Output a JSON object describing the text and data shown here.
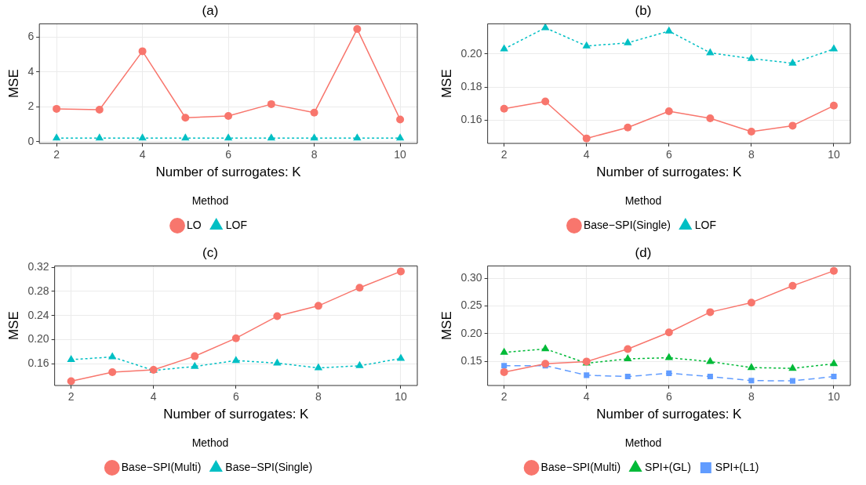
{
  "chart_data": [
    {
      "type": "line",
      "title": "(a)",
      "xlabel": "Number of surrogates: K",
      "ylabel": "MSE",
      "legend_title": "Method",
      "legend": "bottom",
      "grid": true,
      "x": [
        2,
        3,
        4,
        5,
        6,
        7,
        8,
        9,
        10
      ],
      "xlim": [
        1.6,
        10.4
      ],
      "xticks": [
        2,
        4,
        6,
        8,
        10
      ],
      "ylim": [
        -0.1,
        6.75
      ],
      "yticks": [
        0,
        2,
        4,
        6
      ],
      "series": [
        {
          "name": "LO",
          "color": "#f8766d",
          "marker": "circle",
          "line_style": "solid",
          "values": [
            1.88,
            1.83,
            5.18,
            1.37,
            1.47,
            2.15,
            1.66,
            6.45,
            1.27
          ]
        },
        {
          "name": "LOF",
          "color": "#00bfc4",
          "marker": "triangle",
          "line_style": "dotted",
          "values": [
            0.2,
            0.2,
            0.2,
            0.2,
            0.2,
            0.2,
            0.2,
            0.2,
            0.2
          ]
        }
      ]
    },
    {
      "type": "line",
      "title": "(b)",
      "xlabel": "Number of surrogates: K",
      "ylabel": "MSE",
      "legend_title": "Method",
      "legend": "bottom",
      "grid": true,
      "x": [
        2,
        3,
        4,
        5,
        6,
        7,
        8,
        9,
        10
      ],
      "xlim": [
        1.6,
        10.4
      ],
      "xticks": [
        2,
        4,
        6,
        8,
        10
      ],
      "ylim": [
        0.146,
        0.2182
      ],
      "yticks": [
        {
          "value": 0.16,
          "label": "0.16"
        },
        {
          "value": 0.18,
          "label": "0.18"
        },
        {
          "value": 0.2,
          "label": "0.20"
        }
      ],
      "series": [
        {
          "name": "Base−SPI(Single)",
          "color": "#f8766d",
          "marker": "circle",
          "line_style": "solid",
          "values": [
            0.1669,
            0.1713,
            0.149,
            0.1556,
            0.1654,
            0.1611,
            0.1531,
            0.1567,
            0.1688
          ]
        },
        {
          "name": "LOF",
          "color": "#00bfc4",
          "marker": "triangle",
          "line_style": "dotted",
          "values": [
            0.203,
            0.2158,
            0.2048,
            0.2067,
            0.2138,
            0.2007,
            0.1972,
            0.1944,
            0.203
          ]
        }
      ]
    },
    {
      "type": "line",
      "title": "(c)",
      "xlabel": "Number of surrogates: K",
      "ylabel": "MSE",
      "legend_title": "Method",
      "legend": "bottom",
      "grid": true,
      "x": [
        2,
        3,
        4,
        5,
        6,
        7,
        8,
        9,
        10
      ],
      "xlim": [
        1.6,
        10.4
      ],
      "xticks": [
        2,
        4,
        6,
        8,
        10
      ],
      "ylim": [
        0.124,
        0.3223
      ],
      "yticks": [
        {
          "value": 0.16,
          "label": "0.16"
        },
        {
          "value": 0.2,
          "label": "0.20"
        },
        {
          "value": 0.24,
          "label": "0.24"
        },
        {
          "value": 0.28,
          "label": "0.28"
        },
        {
          "value": 0.32,
          "label": "0.32"
        }
      ],
      "series": [
        {
          "name": "Base−SPI(Multi)",
          "color": "#f8766d",
          "marker": "circle",
          "line_style": "solid",
          "values": [
            0.1311,
            0.146,
            0.1501,
            0.1726,
            0.2024,
            0.2389,
            0.2561,
            0.2862,
            0.3132
          ]
        },
        {
          "name": "Base−SPI(Single)",
          "color": "#00bfc4",
          "marker": "triangle",
          "line_style": "dotted",
          "values": [
            0.1669,
            0.1713,
            0.149,
            0.1556,
            0.1654,
            0.1611,
            0.1531,
            0.1567,
            0.1688
          ]
        }
      ]
    },
    {
      "type": "line",
      "title": "(d)",
      "xlabel": "Number of surrogates: K",
      "ylabel": "MSE",
      "legend_title": "Method",
      "legend": "bottom",
      "grid": true,
      "x": [
        2,
        3,
        4,
        5,
        6,
        7,
        8,
        9,
        10
      ],
      "xlim": [
        1.6,
        10.4
      ],
      "xticks": [
        2,
        4,
        6,
        8,
        10
      ],
      "ylim": [
        0.107,
        0.322
      ],
      "yticks": [
        {
          "value": 0.15,
          "label": "0.15"
        },
        {
          "value": 0.2,
          "label": "0.20"
        },
        {
          "value": 0.25,
          "label": "0.25"
        },
        {
          "value": 0.3,
          "label": "0.30"
        }
      ],
      "series": [
        {
          "name": "Base−SPI(Multi)",
          "color": "#f8766d",
          "marker": "circle",
          "line_style": "solid",
          "values": [
            0.1311,
            0.146,
            0.1501,
            0.1726,
            0.2024,
            0.2389,
            0.2561,
            0.2862,
            0.3132
          ]
        },
        {
          "name": "SPI+(GL)",
          "color": "#00ba38",
          "marker": "triangle",
          "line_style": "dotted",
          "values": [
            0.1666,
            0.1729,
            0.147,
            0.1549,
            0.1569,
            0.15,
            0.1392,
            0.1378,
            0.146
          ]
        },
        {
          "name": "SPI+(L1)",
          "color": "#619cff",
          "marker": "square",
          "line_style": "dashed",
          "values": [
            0.1427,
            0.1427,
            0.1255,
            0.1231,
            0.129,
            0.1231,
            0.1158,
            0.1153,
            0.1231
          ]
        }
      ]
    }
  ]
}
